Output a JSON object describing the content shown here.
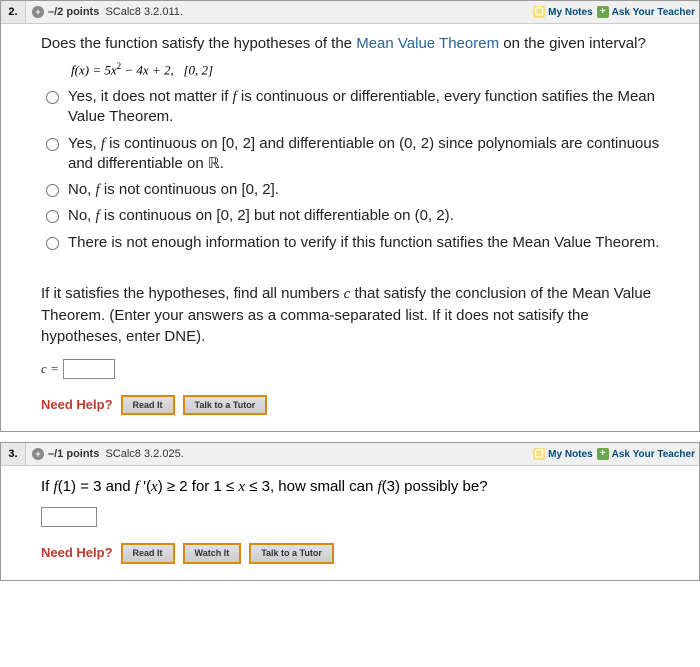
{
  "q2": {
    "number": "2.",
    "points": "–/2 points",
    "ref": "SCalc8 3.2.011.",
    "mynotes": "My Notes",
    "ask": "Ask Your Teacher",
    "prompt_pre": "Does the function satisfy the hypotheses of the ",
    "prompt_link": "Mean Value Theorem",
    "prompt_post": " on the given interval?",
    "formula": "f(x) = 5x² − 4x + 2,   [0, 2]",
    "choices": [
      "Yes, it does not matter if f is continuous or differentiable, every function satifies the Mean Value Theorem.",
      "Yes, f is continuous on [0, 2] and differentiable on (0, 2) since polynomials are continuous and differentiable on ℝ.",
      "No, f is not continuous on [0, 2].",
      "No, f is continuous on [0, 2] but not differentiable on (0, 2).",
      "There is not enough information to verify if this function satifies the Mean Value Theorem."
    ],
    "part2": "If it satisfies the hypotheses, find all numbers c that satisfy the conclusion of the Mean Value Theorem. (Enter your answers as a comma-separated list. If it does not satisify the hypotheses, enter DNE).",
    "c_label": "c =",
    "need_help": "Need Help?",
    "read_it": "Read It",
    "talk_tutor": "Talk to a Tutor"
  },
  "q3": {
    "number": "3.",
    "points": "–/1 points",
    "ref": "SCalc8 3.2.025.",
    "mynotes": "My Notes",
    "ask": "Ask Your Teacher",
    "line": "If f(1) = 3 and f ′(x) ≥ 2 for 1 ≤ x ≤ 3, how small can f(3) possibly be?",
    "need_help": "Need Help?",
    "read_it": "Read It",
    "watch_it": "Watch It",
    "talk_tutor": "Talk to a Tutor"
  }
}
